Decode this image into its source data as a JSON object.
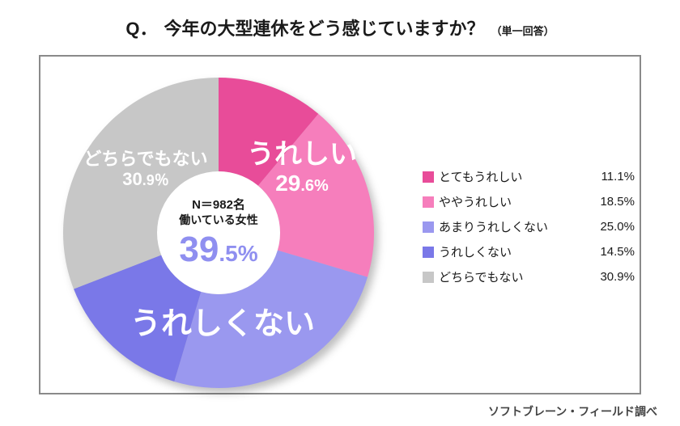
{
  "title": {
    "prefix": "Q．",
    "main": "今年の大型連休をどう感じていますか？",
    "sub": "（単一回答）"
  },
  "chart": {
    "type": "donut",
    "inner_radius": 76,
    "outer_radius": 192,
    "slices": [
      {
        "key": "very_happy",
        "label": "とてもうれしい",
        "value": 11.1,
        "color": "#e84c99"
      },
      {
        "key": "somewhat_happy",
        "label": "ややうれしい",
        "value": 18.5,
        "color": "#f67ebc"
      },
      {
        "key": "not_so_happy",
        "label": "あまりうれしくない",
        "value": 25.0,
        "color": "#9a98ef"
      },
      {
        "key": "not_happy",
        "label": "うれしくない",
        "value": 14.5,
        "color": "#7a78e8"
      },
      {
        "key": "neither",
        "label": "どちらでもない",
        "value": 30.9,
        "color": "#c7c7c7"
      }
    ],
    "groups": {
      "happy": {
        "label": "うれしい",
        "pct_big": "29",
        "pct_small": ".6%",
        "color": "#ffffff"
      },
      "unhappy": {
        "label": "うれしくない",
        "pct_big": "39",
        "pct_small": ".5%",
        "color_label": "#ffffff",
        "color_pct": "#8f8ff0"
      },
      "neither": {
        "label": "どちらでもない",
        "pct_big": "30",
        "pct_small": ".9％",
        "color": "#ffffff"
      }
    },
    "center": {
      "n_line": "N＝982名",
      "sub_line": "働いている女性"
    }
  },
  "legend_title_hidden": true,
  "credit": "ソフトブレーン・フィールド調べ"
}
